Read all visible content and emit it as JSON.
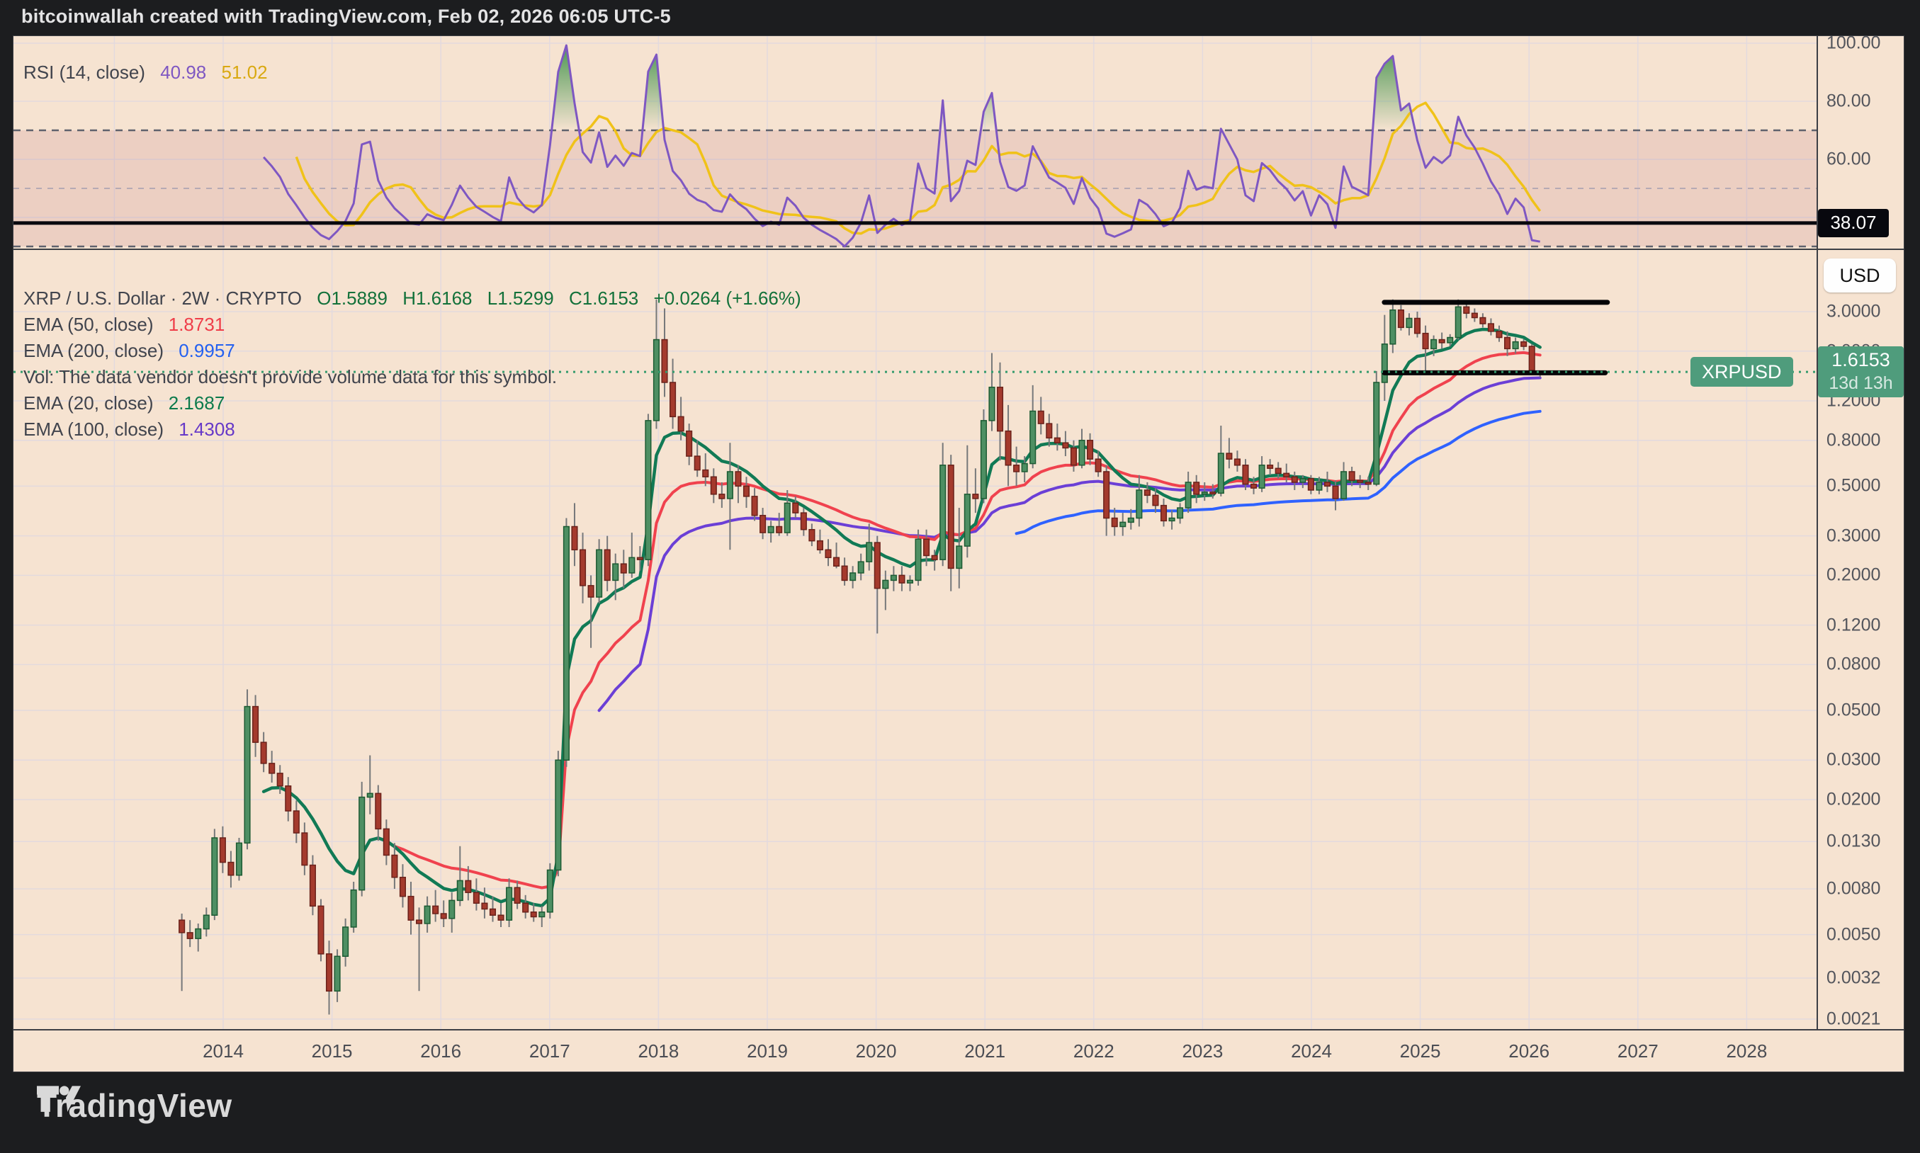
{
  "header": {
    "text": "bitcoinwallah created with TradingView.com, Feb 02, 2026 06:05 UTC-5"
  },
  "footer": {
    "logo_text": "TradingView",
    "logo_icon": "tradingview-mark"
  },
  "rsi_pane": {
    "legend_label": "RSI (14, close)",
    "value": "40.98",
    "ma_value": "51.02",
    "axis_ticks": [
      {
        "v": 100,
        "label": "100.00"
      },
      {
        "v": 80,
        "label": "80.00"
      },
      {
        "v": 60,
        "label": "60.00"
      }
    ],
    "gridline_values": [
      100,
      80,
      60,
      40
    ],
    "band": {
      "upper": 70,
      "middle": 50,
      "lower": 30
    },
    "hline_value": 38.07,
    "hline_badge": "38.07"
  },
  "main_pane": {
    "legend_title": "XRP / U.S. Dollar · 2W · CRYPTO",
    "ohlc_text": {
      "open": "O1.5889",
      "high": "H1.6168",
      "low": "L1.5299",
      "close": "C1.6153",
      "change": "+0.0264 (+1.66%)"
    },
    "ema50_label": "EMA (50, close)",
    "ema50_value": "1.8731",
    "ema200_label": "EMA (200, close)",
    "ema200_value": "0.9957",
    "vol_note": "Vol: The data vendor doesn't provide volume data for this symbol.",
    "ema20_label": "EMA (20, close)",
    "ema20_value": "2.1687",
    "ema100_label": "EMA (100, close)",
    "ema100_value": "1.4308",
    "symbol_badge": "XRPUSD",
    "price_badge": {
      "price": "1.6153",
      "countdown": "13d 13h"
    },
    "usd_button": "USD"
  },
  "time_axis": {
    "year_labels": [
      "2014",
      "2015",
      "2016",
      "2017",
      "2018",
      "2019",
      "2020",
      "2021",
      "2022",
      "2023",
      "2024",
      "2025",
      "2026",
      "2027",
      "2028"
    ],
    "gridline_years": [
      2013,
      2014,
      2015,
      2016,
      2017,
      2018,
      2019,
      2020,
      2021,
      2022,
      2023,
      2024,
      2025,
      2026,
      2027,
      2028
    ]
  },
  "colors": {
    "panel_bg": "#f6e3d1",
    "frame_bg": "#1c1d1f",
    "grid": "#e3dade",
    "candle_up_fill": "#4e8f63",
    "candle_up_border": "#1d5b33",
    "candle_down_fill": "#a43a2d",
    "candle_down_border": "#6b221b",
    "wick": "#76787a",
    "ema20": "#117a55",
    "ema50": "#f0424e",
    "ema100": "#6b3fd6",
    "ema200": "#2f62ff",
    "rsi_line": "#7e57c2",
    "rsi_ma": "#f0c219",
    "rsi_fill": "#3e9148",
    "band_fill": "rgba(150,40,70,0.10)",
    "band_edge": "#5f626d",
    "band_mid": "#b6aab4",
    "hline_black": "#08080e",
    "price_line": "#359b6d",
    "badge_green": "#4f9c7c",
    "axis_text": "#53555c"
  },
  "chart_data": {
    "type": "candlestick",
    "title": "XRP / U.S. Dollar",
    "symbol": "XRPUSD",
    "timeframe": "2W",
    "exchange": "CRYPTO",
    "scale": "log",
    "ylim": [
      0.0019,
      5.7
    ],
    "xlim_years": [
      2012.07,
      2028.64
    ],
    "start_year": 2013.62,
    "bars_per_year": 13.3,
    "last_bar": {
      "open": 1.5889,
      "high": 1.6168,
      "low": 1.5299,
      "close": 1.6153,
      "change": 0.0264,
      "change_pct": 1.66
    },
    "price_axis_ticks": [
      {
        "v": 3.0,
        "label": "3.0000"
      },
      {
        "v": 2.0,
        "label": "2.0000"
      },
      {
        "v": 1.2,
        "label": "1.2000"
      },
      {
        "v": 0.8,
        "label": "0.8000"
      },
      {
        "v": 0.5,
        "label": "0.5000"
      },
      {
        "v": 0.3,
        "label": "0.3000"
      },
      {
        "v": 0.2,
        "label": "0.2000"
      },
      {
        "v": 0.12,
        "label": "0.1200"
      },
      {
        "v": 0.08,
        "label": "0.0800"
      },
      {
        "v": 0.05,
        "label": "0.0500"
      },
      {
        "v": 0.03,
        "label": "0.0300"
      },
      {
        "v": 0.02,
        "label": "0.0200"
      },
      {
        "v": 0.013,
        "label": "0.0130"
      },
      {
        "v": 0.008,
        "label": "0.0080"
      },
      {
        "v": 0.005,
        "label": "0.0050"
      },
      {
        "v": 0.0032,
        "label": "0.0032"
      },
      {
        "v": 0.0021,
        "label": "0.0021"
      }
    ],
    "indicators": {
      "ema_periods": [
        20,
        50,
        100,
        200
      ],
      "rsi_period": 14,
      "rsi_ma_period": 14,
      "rsi_last": 40.98,
      "rsi_ma_last": 51.02
    },
    "drawings": {
      "trendlines": [
        {
          "type": "horizontal-segment",
          "price": 3.3,
          "t1": 2024.67,
          "t2": 2026.72,
          "width": 7
        },
        {
          "type": "horizontal-segment",
          "price": 1.6,
          "t1": 2024.67,
          "t2": 2026.7,
          "width": 7
        }
      ],
      "rsi_hline": 38.07,
      "last_price_line": 1.6153
    },
    "ohlc": [
      [
        0.0058,
        0.0062,
        0.0028,
        0.0051
      ],
      [
        0.0051,
        0.0058,
        0.0044,
        0.0048
      ],
      [
        0.0048,
        0.0056,
        0.0042,
        0.0053
      ],
      [
        0.0053,
        0.0066,
        0.0049,
        0.0061
      ],
      [
        0.0061,
        0.0148,
        0.0058,
        0.0135
      ],
      [
        0.0135,
        0.0152,
        0.0094,
        0.0105
      ],
      [
        0.0105,
        0.0118,
        0.0081,
        0.0092
      ],
      [
        0.0092,
        0.0135,
        0.0087,
        0.0128
      ],
      [
        0.0128,
        0.062,
        0.012,
        0.052
      ],
      [
        0.052,
        0.0585,
        0.031,
        0.036
      ],
      [
        0.036,
        0.04,
        0.0265,
        0.029
      ],
      [
        0.029,
        0.033,
        0.0238,
        0.0262
      ],
      [
        0.0262,
        0.0285,
        0.0212,
        0.023
      ],
      [
        0.023,
        0.0252,
        0.016,
        0.0178
      ],
      [
        0.0178,
        0.0198,
        0.0128,
        0.0142
      ],
      [
        0.0142,
        0.0158,
        0.0092,
        0.0102
      ],
      [
        0.0102,
        0.0113,
        0.0061,
        0.0067
      ],
      [
        0.0067,
        0.0072,
        0.0038,
        0.0041
      ],
      [
        0.0041,
        0.0047,
        0.0022,
        0.0028
      ],
      [
        0.0028,
        0.0043,
        0.0025,
        0.004
      ],
      [
        0.004,
        0.0059,
        0.0036,
        0.0054
      ],
      [
        0.0054,
        0.0086,
        0.0051,
        0.0079
      ],
      [
        0.0079,
        0.024,
        0.0074,
        0.0205
      ],
      [
        0.0205,
        0.0315,
        0.0172,
        0.0213
      ],
      [
        0.0213,
        0.0232,
        0.0131,
        0.0148
      ],
      [
        0.0148,
        0.0163,
        0.0102,
        0.0113
      ],
      [
        0.0113,
        0.0128,
        0.008,
        0.009
      ],
      [
        0.009,
        0.0103,
        0.0066,
        0.0074
      ],
      [
        0.0074,
        0.0086,
        0.005,
        0.0058
      ],
      [
        0.0058,
        0.0066,
        0.0028,
        0.0056
      ],
      [
        0.0056,
        0.0074,
        0.0051,
        0.0067
      ],
      [
        0.0067,
        0.0079,
        0.0057,
        0.0062
      ],
      [
        0.0062,
        0.0071,
        0.0054,
        0.0059
      ],
      [
        0.0059,
        0.0077,
        0.0051,
        0.0071
      ],
      [
        0.0071,
        0.0124,
        0.0067,
        0.0087
      ],
      [
        0.0087,
        0.0101,
        0.0071,
        0.0077
      ],
      [
        0.0077,
        0.0089,
        0.0064,
        0.0069
      ],
      [
        0.0069,
        0.0081,
        0.0059,
        0.0065
      ],
      [
        0.0065,
        0.0074,
        0.0057,
        0.0061
      ],
      [
        0.0061,
        0.0069,
        0.0054,
        0.0058
      ],
      [
        0.0058,
        0.0089,
        0.0054,
        0.0081
      ],
      [
        0.0081,
        0.0087,
        0.0065,
        0.0069
      ],
      [
        0.0069,
        0.0075,
        0.0059,
        0.0063
      ],
      [
        0.0063,
        0.0069,
        0.0057,
        0.006
      ],
      [
        0.006,
        0.0067,
        0.0054,
        0.0063
      ],
      [
        0.0063,
        0.0104,
        0.0059,
        0.0097
      ],
      [
        0.0097,
        0.033,
        0.0091,
        0.03
      ],
      [
        0.03,
        0.36,
        0.028,
        0.33
      ],
      [
        0.33,
        0.42,
        0.22,
        0.26
      ],
      [
        0.26,
        0.31,
        0.15,
        0.18
      ],
      [
        0.18,
        0.2,
        0.095,
        0.16
      ],
      [
        0.16,
        0.29,
        0.15,
        0.26
      ],
      [
        0.26,
        0.3,
        0.17,
        0.19
      ],
      [
        0.19,
        0.25,
        0.155,
        0.225
      ],
      [
        0.225,
        0.26,
        0.175,
        0.205
      ],
      [
        0.205,
        0.31,
        0.195,
        0.24
      ],
      [
        0.24,
        0.27,
        0.21,
        0.235
      ],
      [
        0.235,
        1.05,
        0.22,
        0.98
      ],
      [
        0.98,
        3.4,
        0.9,
        2.25
      ],
      [
        2.25,
        3.1,
        1.25,
        1.45
      ],
      [
        1.45,
        1.85,
        0.9,
        1.02
      ],
      [
        1.02,
        1.25,
        0.8,
        0.88
      ],
      [
        0.88,
        0.95,
        0.62,
        0.68
      ],
      [
        0.68,
        0.8,
        0.55,
        0.59
      ],
      [
        0.59,
        0.7,
        0.5,
        0.55
      ],
      [
        0.55,
        0.6,
        0.42,
        0.46
      ],
      [
        0.46,
        0.52,
        0.4,
        0.44
      ],
      [
        0.44,
        0.78,
        0.26,
        0.58
      ],
      [
        0.58,
        0.62,
        0.42,
        0.5
      ],
      [
        0.5,
        0.55,
        0.4,
        0.45
      ],
      [
        0.45,
        0.49,
        0.35,
        0.37
      ],
      [
        0.37,
        0.4,
        0.29,
        0.31
      ],
      [
        0.31,
        0.35,
        0.28,
        0.33
      ],
      [
        0.33,
        0.38,
        0.3,
        0.31
      ],
      [
        0.31,
        0.48,
        0.3,
        0.42
      ],
      [
        0.42,
        0.45,
        0.36,
        0.38
      ],
      [
        0.38,
        0.4,
        0.3,
        0.32
      ],
      [
        0.32,
        0.34,
        0.27,
        0.285
      ],
      [
        0.285,
        0.32,
        0.25,
        0.26
      ],
      [
        0.26,
        0.29,
        0.22,
        0.24
      ],
      [
        0.24,
        0.28,
        0.215,
        0.22
      ],
      [
        0.22,
        0.24,
        0.18,
        0.19
      ],
      [
        0.19,
        0.22,
        0.175,
        0.205
      ],
      [
        0.205,
        0.25,
        0.19,
        0.23
      ],
      [
        0.23,
        0.34,
        0.21,
        0.28
      ],
      [
        0.28,
        0.3,
        0.11,
        0.175
      ],
      [
        0.175,
        0.21,
        0.14,
        0.19
      ],
      [
        0.19,
        0.22,
        0.17,
        0.2
      ],
      [
        0.2,
        0.22,
        0.17,
        0.185
      ],
      [
        0.185,
        0.2,
        0.17,
        0.19
      ],
      [
        0.19,
        0.32,
        0.18,
        0.29
      ],
      [
        0.29,
        0.32,
        0.22,
        0.245
      ],
      [
        0.245,
        0.26,
        0.21,
        0.235
      ],
      [
        0.235,
        0.78,
        0.22,
        0.62
      ],
      [
        0.62,
        0.69,
        0.17,
        0.215
      ],
      [
        0.215,
        0.4,
        0.175,
        0.27
      ],
      [
        0.27,
        0.76,
        0.24,
        0.46
      ],
      [
        0.46,
        0.6,
        0.38,
        0.44
      ],
      [
        0.44,
        1.1,
        0.42,
        0.98
      ],
      [
        0.98,
        1.96,
        0.88,
        1.38
      ],
      [
        1.38,
        1.78,
        0.65,
        0.88
      ],
      [
        0.88,
        1.15,
        0.5,
        0.62
      ],
      [
        0.62,
        0.75,
        0.5,
        0.58
      ],
      [
        0.58,
        0.68,
        0.52,
        0.63
      ],
      [
        0.63,
        1.41,
        0.6,
        1.08
      ],
      [
        1.08,
        1.25,
        0.85,
        0.95
      ],
      [
        0.95,
        1.05,
        0.75,
        0.82
      ],
      [
        0.82,
        0.95,
        0.72,
        0.78
      ],
      [
        0.78,
        0.88,
        0.68,
        0.74
      ],
      [
        0.74,
        0.8,
        0.58,
        0.62
      ],
      [
        0.62,
        0.9,
        0.6,
        0.8
      ],
      [
        0.8,
        0.86,
        0.62,
        0.66
      ],
      [
        0.66,
        0.72,
        0.55,
        0.58
      ],
      [
        0.58,
        0.62,
        0.3,
        0.36
      ],
      [
        0.36,
        0.4,
        0.3,
        0.33
      ],
      [
        0.33,
        0.38,
        0.3,
        0.345
      ],
      [
        0.345,
        0.395,
        0.32,
        0.36
      ],
      [
        0.36,
        0.56,
        0.33,
        0.48
      ],
      [
        0.48,
        0.52,
        0.42,
        0.455
      ],
      [
        0.455,
        0.49,
        0.38,
        0.41
      ],
      [
        0.41,
        0.44,
        0.33,
        0.35
      ],
      [
        0.35,
        0.39,
        0.32,
        0.36
      ],
      [
        0.36,
        0.42,
        0.34,
        0.4
      ],
      [
        0.4,
        0.58,
        0.38,
        0.52
      ],
      [
        0.52,
        0.56,
        0.42,
        0.46
      ],
      [
        0.46,
        0.52,
        0.43,
        0.47
      ],
      [
        0.47,
        0.51,
        0.44,
        0.465
      ],
      [
        0.465,
        0.93,
        0.45,
        0.7
      ],
      [
        0.7,
        0.82,
        0.6,
        0.66
      ],
      [
        0.66,
        0.72,
        0.58,
        0.62
      ],
      [
        0.62,
        0.66,
        0.48,
        0.51
      ],
      [
        0.51,
        0.55,
        0.46,
        0.49
      ],
      [
        0.49,
        0.68,
        0.47,
        0.62
      ],
      [
        0.62,
        0.66,
        0.56,
        0.6
      ],
      [
        0.6,
        0.64,
        0.54,
        0.57
      ],
      [
        0.57,
        0.63,
        0.52,
        0.55
      ],
      [
        0.55,
        0.58,
        0.48,
        0.52
      ],
      [
        0.52,
        0.56,
        0.49,
        0.54
      ],
      [
        0.54,
        0.56,
        0.46,
        0.48
      ],
      [
        0.48,
        0.55,
        0.46,
        0.52
      ],
      [
        0.52,
        0.58,
        0.47,
        0.5
      ],
      [
        0.5,
        0.53,
        0.39,
        0.44
      ],
      [
        0.44,
        0.64,
        0.43,
        0.58
      ],
      [
        0.58,
        0.61,
        0.5,
        0.53
      ],
      [
        0.53,
        0.56,
        0.49,
        0.52
      ],
      [
        0.52,
        0.55,
        0.48,
        0.51
      ],
      [
        0.51,
        1.63,
        0.5,
        1.45
      ],
      [
        1.45,
        2.9,
        1.2,
        2.15
      ],
      [
        2.15,
        3.4,
        1.96,
        3.05
      ],
      [
        3.05,
        3.21,
        2.47,
        2.55
      ],
      [
        2.55,
        2.95,
        2.35,
        2.8
      ],
      [
        2.8,
        3.0,
        2.3,
        2.4
      ],
      [
        2.4,
        2.6,
        1.61,
        2.05
      ],
      [
        2.05,
        2.35,
        1.9,
        2.25
      ],
      [
        2.25,
        2.42,
        2.05,
        2.18
      ],
      [
        2.18,
        2.38,
        2.1,
        2.3
      ],
      [
        2.3,
        3.4,
        2.25,
        3.15
      ],
      [
        3.15,
        3.35,
        2.8,
        2.95
      ],
      [
        2.95,
        3.1,
        2.7,
        2.82
      ],
      [
        2.82,
        2.95,
        2.55,
        2.65
      ],
      [
        2.65,
        2.8,
        2.35,
        2.45
      ],
      [
        2.45,
        2.6,
        2.2,
        2.3
      ],
      [
        2.3,
        2.45,
        1.9,
        2.05
      ],
      [
        2.05,
        2.3,
        1.95,
        2.2
      ],
      [
        2.2,
        2.26,
        2.02,
        2.1
      ],
      [
        2.1,
        2.15,
        1.6,
        1.64
      ],
      [
        1.5889,
        1.6168,
        1.5299,
        1.6153
      ]
    ]
  }
}
